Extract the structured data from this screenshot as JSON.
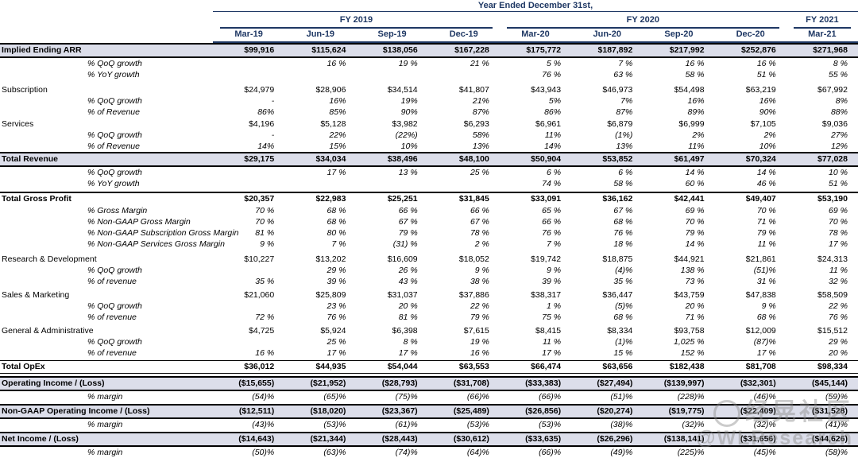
{
  "title": "Year Ended December 31st,",
  "colors": {
    "header_navy": "#1f3864",
    "row_highlight": "#dcdeea",
    "rule_black": "#000000"
  },
  "watermark": {
    "logo": "circle-logo",
    "line1": "经晃社区",
    "line2": "@WLResearch"
  },
  "table": {
    "fiscal_groups": [
      {
        "label": "FY 2019",
        "cols": 4
      },
      {
        "label": "FY 2020",
        "cols": 4
      },
      {
        "label": "FY 2021",
        "cols": 1
      }
    ],
    "columns": [
      "Mar-19",
      "Jun-19",
      "Sep-19",
      "Dec-19",
      "Mar-20",
      "Jun-20",
      "Sep-20",
      "Dec-20",
      "Mar-21"
    ],
    "rows": [
      {
        "label": "Implied Ending ARR",
        "style": "highlight",
        "gap": 0,
        "values": [
          "$99,916",
          "$115,624",
          "$138,056",
          "$167,228",
          "$175,772",
          "$187,892",
          "$217,992",
          "$252,876",
          "$271,968"
        ]
      },
      {
        "label": "% QoQ growth",
        "style": "sub",
        "gap": 0,
        "values": [
          "",
          "16 %",
          "19 %",
          "21 %",
          "5 %",
          "7 %",
          "16 %",
          "16 %",
          "8 %"
        ]
      },
      {
        "label": "% YoY growth",
        "style": "sub",
        "gap": 0,
        "values": [
          "",
          "",
          "",
          "",
          "76 %",
          "63 %",
          "58 %",
          "51 %",
          "55 %"
        ]
      },
      {
        "label": "Subscription",
        "style": "main",
        "gap": 5,
        "values": [
          "$24,979",
          "$28,906",
          "$34,514",
          "$41,807",
          "$43,943",
          "$46,973",
          "$54,498",
          "$63,219",
          "$67,992"
        ]
      },
      {
        "label": "% QoQ growth",
        "style": "sub",
        "gap": 0,
        "values": [
          "-",
          "16%",
          "19%",
          "21%",
          "5%",
          "7%",
          "16%",
          "16%",
          "8%"
        ]
      },
      {
        "label": "% of Revenue",
        "style": "sub",
        "gap": 0,
        "values": [
          "86%",
          "85%",
          "90%",
          "87%",
          "86%",
          "87%",
          "89%",
          "90%",
          "88%"
        ]
      },
      {
        "label": "Services",
        "style": "main",
        "gap": 1,
        "values": [
          "$4,196",
          "$5,128",
          "$3,982",
          "$6,293",
          "$6,961",
          "$6,879",
          "$6,999",
          "$7,105",
          "$9,036"
        ]
      },
      {
        "label": "% QoQ growth",
        "style": "sub",
        "gap": 0,
        "values": [
          "-",
          "22%",
          "(22%)",
          "58%",
          "11%",
          "(1%)",
          "2%",
          "2%",
          "27%"
        ]
      },
      {
        "label": "% of Revenue",
        "style": "sub",
        "gap": 0,
        "values": [
          "14%",
          "15%",
          "10%",
          "13%",
          "14%",
          "13%",
          "11%",
          "10%",
          "12%"
        ]
      },
      {
        "label": "Total Revenue",
        "style": "highlight",
        "gap": 0,
        "values": [
          "$29,175",
          "$34,034",
          "$38,496",
          "$48,100",
          "$50,904",
          "$53,852",
          "$61,497",
          "$70,324",
          "$77,028"
        ]
      },
      {
        "label": "% QoQ growth",
        "style": "sub",
        "gap": 0,
        "values": [
          "",
          "17 %",
          "13 %",
          "25 %",
          "6 %",
          "6 %",
          "14 %",
          "14 %",
          "10 %"
        ]
      },
      {
        "label": "% YoY growth",
        "style": "sub",
        "gap": 0,
        "values": [
          "",
          "",
          "",
          "",
          "74 %",
          "58 %",
          "60 %",
          "46 %",
          "51 %"
        ]
      },
      {
        "label": "Total Gross Profit",
        "style": "grosstotal",
        "gap": 3,
        "values": [
          "$20,357",
          "$22,983",
          "$25,251",
          "$31,845",
          "$33,091",
          "$36,162",
          "$42,441",
          "$49,407",
          "$53,190"
        ]
      },
      {
        "label": "% Gross Margin",
        "style": "sub",
        "gap": 0,
        "values": [
          "70 %",
          "68 %",
          "66 %",
          "66 %",
          "65 %",
          "67 %",
          "69 %",
          "70 %",
          "69 %"
        ]
      },
      {
        "label": "% Non-GAAP Gross Margin",
        "style": "sub",
        "gap": 0,
        "values": [
          "70 %",
          "68 %",
          "67 %",
          "67 %",
          "66 %",
          "68 %",
          "70 %",
          "71 %",
          "70 %"
        ]
      },
      {
        "label": "% Non-GAAP Subscription Gross Margin",
        "style": "sub",
        "gap": 0,
        "values": [
          "81 %",
          "80 %",
          "79 %",
          "78 %",
          "76 %",
          "76 %",
          "79 %",
          "79 %",
          "78 %"
        ]
      },
      {
        "label": "% Non-GAAP Services Gross Margin",
        "style": "sub",
        "gap": 0,
        "values": [
          "9 %",
          "7 %",
          "(31) %",
          "2 %",
          "7 %",
          "18 %",
          "14 %",
          "11 %",
          "17 %"
        ]
      },
      {
        "label": "Research & Development",
        "style": "main",
        "gap": 5,
        "values": [
          "$10,227",
          "$13,202",
          "$16,609",
          "$18,052",
          "$19,742",
          "$18,875",
          "$44,921",
          "$21,861",
          "$24,313"
        ]
      },
      {
        "label": "% QoQ growth",
        "style": "sub",
        "gap": 0,
        "values": [
          "",
          "29 %",
          "26 %",
          "9 %",
          "9 %",
          "(4)%",
          "138 %",
          "(51)%",
          "11 %"
        ]
      },
      {
        "label": "% of revenue",
        "style": "sub",
        "gap": 0,
        "values": [
          "35 %",
          "39 %",
          "43 %",
          "38 %",
          "39 %",
          "35 %",
          "73 %",
          "31 %",
          "32 %"
        ]
      },
      {
        "label": "Sales & Marketing",
        "style": "main",
        "gap": 3,
        "values": [
          "$21,060",
          "$25,809",
          "$31,037",
          "$37,886",
          "$38,317",
          "$36,447",
          "$43,759",
          "$47,838",
          "$58,509"
        ]
      },
      {
        "label": "% QoQ growth",
        "style": "sub",
        "gap": 0,
        "values": [
          "",
          "23 %",
          "20 %",
          "22 %",
          "1 %",
          "(5)%",
          "20 %",
          "9 %",
          "22 %"
        ]
      },
      {
        "label": "% of revenue",
        "style": "sub",
        "gap": 0,
        "values": [
          "72 %",
          "76 %",
          "81 %",
          "79 %",
          "75 %",
          "68 %",
          "71 %",
          "68 %",
          "76 %"
        ]
      },
      {
        "label": "General & Administrative",
        "style": "main",
        "gap": 3,
        "values": [
          "$4,725",
          "$5,924",
          "$6,398",
          "$7,615",
          "$8,415",
          "$8,334",
          "$93,758",
          "$12,009",
          "$15,512"
        ]
      },
      {
        "label": "% QoQ growth",
        "style": "sub",
        "gap": 0,
        "values": [
          "",
          "25 %",
          "8 %",
          "19 %",
          "11 %",
          "(1)%",
          "1,025 %",
          "(87)%",
          "29 %"
        ]
      },
      {
        "label": "% of revenue",
        "style": "sub",
        "gap": 0,
        "values": [
          "16 %",
          "17 %",
          "17 %",
          "16 %",
          "17 %",
          "15 %",
          "152 %",
          "17 %",
          "20 %"
        ]
      },
      {
        "label": "Total OpEx",
        "style": "opex",
        "gap": 2,
        "values": [
          "$36,012",
          "$44,935",
          "$54,044",
          "$63,553",
          "$66,474",
          "$63,656",
          "$182,438",
          "$81,708",
          "$98,334"
        ]
      },
      {
        "label": "Operating Income / (Loss)",
        "style": "highlight",
        "gap": 3,
        "values": [
          "($15,655)",
          "($21,952)",
          "($28,793)",
          "($31,708)",
          "($33,383)",
          "($27,494)",
          "($139,997)",
          "($32,301)",
          "($45,144)"
        ]
      },
      {
        "label": "% margin",
        "style": "sub",
        "gap": 0,
        "values": [
          "(54)%",
          "(65)%",
          "(75)%",
          "(66)%",
          "(66)%",
          "(51)%",
          "(228)%",
          "(46)%",
          "(59)%"
        ]
      },
      {
        "label": "Non-GAAP Operating Income / (Loss)",
        "style": "highlight",
        "gap": 2,
        "values": [
          "($12,511)",
          "($18,020)",
          "($23,367)",
          "($25,489)",
          "($26,856)",
          "($20,274)",
          "($19,775)",
          "($22,409)",
          "($31,528)"
        ]
      },
      {
        "label": "% margin",
        "style": "sub",
        "gap": 0,
        "values": [
          "(43)%",
          "(53)%",
          "(61)%",
          "(53)%",
          "(53)%",
          "(38)%",
          "(32)%",
          "(32)%",
          "(41)%"
        ]
      },
      {
        "label": "Net Income / (Loss)",
        "style": "highlight",
        "gap": 2,
        "values": [
          "($14,643)",
          "($21,344)",
          "($28,443)",
          "($30,612)",
          "($33,635)",
          "($26,296)",
          "($138,141)",
          "($31,656)",
          "($44,626)"
        ]
      },
      {
        "label": "% margin",
        "style": "sub",
        "gap": 0,
        "values": [
          "(50)%",
          "(63)%",
          "(74)%",
          "(64)%",
          "(66)%",
          "(49)%",
          "(225)%",
          "(45)%",
          "(58)%"
        ]
      }
    ]
  }
}
